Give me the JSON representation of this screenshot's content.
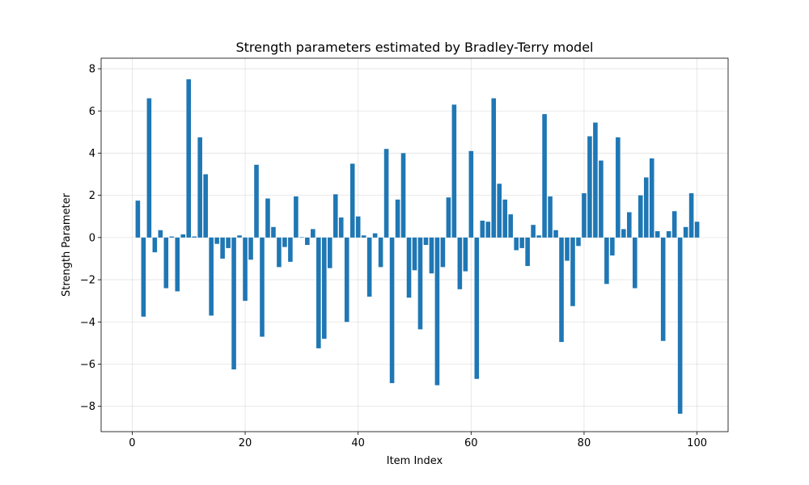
{
  "chart_data": {
    "type": "bar",
    "title": "Strength parameters estimated by Bradley-Terry model",
    "xlabel": "Item Index",
    "ylabel": "Strength Parameter",
    "xlim": [
      -5.5,
      105.5
    ],
    "ylim": [
      -9.2,
      8.5
    ],
    "xticks": [
      0,
      20,
      40,
      60,
      80,
      100
    ],
    "yticks": [
      -8,
      -6,
      -4,
      -2,
      0,
      2,
      4,
      6,
      8
    ],
    "xtick_labels": [
      "0",
      "20",
      "40",
      "60",
      "80",
      "100"
    ],
    "ytick_labels": [
      "−8",
      "−6",
      "−4",
      "−2",
      "0",
      "2",
      "4",
      "6",
      "8"
    ],
    "grid": true,
    "bar_color": "#1f77b4",
    "x": [
      1,
      2,
      3,
      4,
      5,
      6,
      7,
      8,
      9,
      10,
      11,
      12,
      13,
      14,
      15,
      16,
      17,
      18,
      19,
      20,
      21,
      22,
      23,
      24,
      25,
      26,
      27,
      28,
      29,
      30,
      31,
      32,
      33,
      34,
      35,
      36,
      37,
      38,
      39,
      40,
      41,
      42,
      43,
      44,
      45,
      46,
      47,
      48,
      49,
      50,
      51,
      52,
      53,
      54,
      55,
      56,
      57,
      58,
      59,
      60,
      61,
      62,
      63,
      64,
      65,
      66,
      67,
      68,
      69,
      70,
      71,
      72,
      73,
      74,
      75,
      76,
      77,
      78,
      79,
      80,
      81,
      82,
      83,
      84,
      85,
      86,
      87,
      88,
      89,
      90,
      91,
      92,
      93,
      94,
      95,
      96,
      97,
      98,
      99,
      100
    ],
    "values": [
      1.75,
      -3.75,
      6.6,
      -0.7,
      0.35,
      -2.4,
      0.05,
      -2.55,
      0.15,
      7.5,
      0.05,
      4.75,
      3.0,
      -3.7,
      -0.3,
      -1.0,
      -0.5,
      -6.25,
      0.1,
      -3.0,
      -1.05,
      3.45,
      -4.7,
      1.85,
      0.5,
      -1.4,
      -0.45,
      -1.15,
      1.95,
      0.02,
      -0.35,
      0.4,
      -5.25,
      -4.8,
      -1.45,
      2.05,
      0.95,
      -4.0,
      3.5,
      1.0,
      0.1,
      -2.8,
      0.2,
      -1.4,
      4.2,
      -6.9,
      1.8,
      4.0,
      -2.85,
      -1.55,
      -4.35,
      -0.35,
      -1.7,
      -7.0,
      -1.4,
      1.9,
      6.3,
      -2.45,
      -1.6,
      4.1,
      -6.7,
      0.8,
      0.75,
      6.6,
      2.55,
      1.8,
      1.1,
      -0.6,
      -0.5,
      -1.35,
      0.6,
      0.1,
      5.85,
      1.95,
      0.35,
      -4.95,
      -1.1,
      -3.25,
      -0.4,
      2.1,
      4.8,
      5.45,
      3.65,
      -2.2,
      -0.85,
      4.75,
      0.4,
      1.2,
      -2.4,
      2.0,
      2.85,
      3.75,
      0.3,
      -4.9,
      0.3,
      1.25,
      -8.35,
      0.5,
      2.1,
      0.75
    ]
  }
}
